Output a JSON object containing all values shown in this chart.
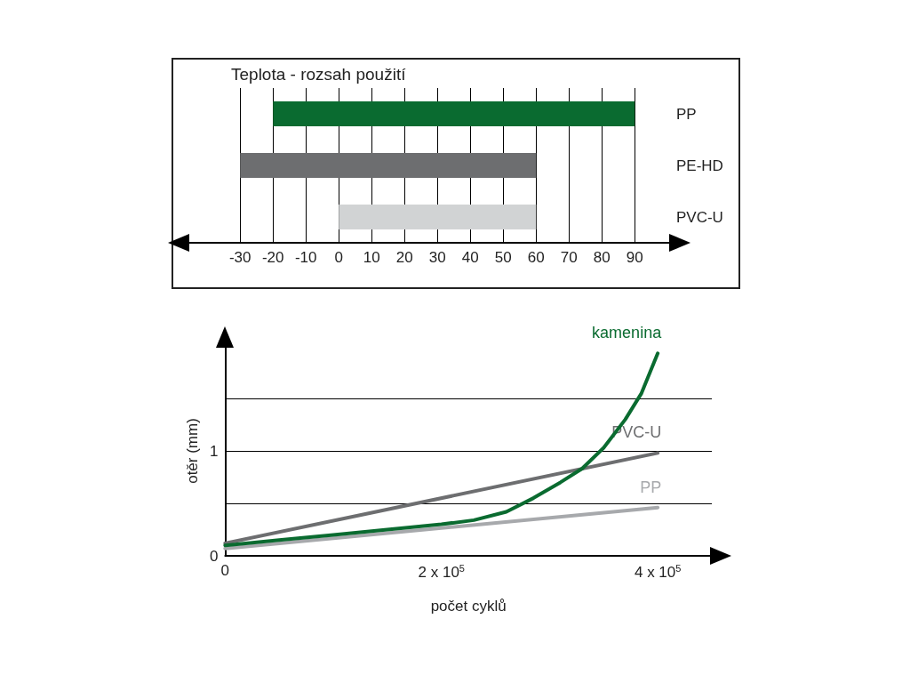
{
  "chart_data": [
    {
      "type": "bar",
      "orientation": "horizontal",
      "title": "Teplota - rozsah použití",
      "categories": [
        "PP",
        "PE-HD",
        "PVC-U"
      ],
      "base": [
        -20,
        -30,
        0
      ],
      "values": [
        110,
        90,
        60
      ],
      "colors": [
        "#0a6b30",
        "#6d6e70",
        "#d1d3d4"
      ],
      "xlim": [
        -46,
        101
      ],
      "xticks": [
        -30,
        -20,
        -10,
        0,
        10,
        20,
        30,
        40,
        50,
        60,
        70,
        80,
        90
      ],
      "grid": "x",
      "legend": false
    },
    {
      "type": "line",
      "xlabel": "počet cyklů",
      "ylabel": "otěr (mm)",
      "xlim": [
        0,
        450000
      ],
      "xticks": [
        0,
        {
          "value": 200000,
          "label": "2 x 10$^{5}$"
        },
        {
          "value": 400000,
          "label": "4 x 10$^{5}$"
        }
      ],
      "ylim": [
        0,
        2
      ],
      "yticks": [
        0,
        {
          "value": 0.5,
          "label": null
        },
        1,
        {
          "value": 1.5,
          "label": null
        }
      ],
      "grid": "y",
      "legend": false,
      "marker": "none",
      "line_style": "solid",
      "series": [
        {
          "name": "kamenina",
          "color": "#0a6b30",
          "x": [
            0,
            50000,
            100000,
            150000,
            200000,
            230000,
            260000,
            285000,
            310000,
            330000,
            350000,
            370000,
            385000,
            400000
          ],
          "values": [
            0.1,
            0.15,
            0.2,
            0.25,
            0.3,
            0.34,
            0.42,
            0.55,
            0.7,
            0.83,
            1.03,
            1.3,
            1.55,
            1.93
          ]
        },
        {
          "name": "PVC-U",
          "color": "#6d6e70",
          "x": [
            0,
            400000
          ],
          "values": [
            0.12,
            0.98
          ]
        },
        {
          "name": "PP",
          "color": "#a7a9ac",
          "x": [
            0,
            400000
          ],
          "values": [
            0.07,
            0.46
          ]
        }
      ]
    }
  ]
}
